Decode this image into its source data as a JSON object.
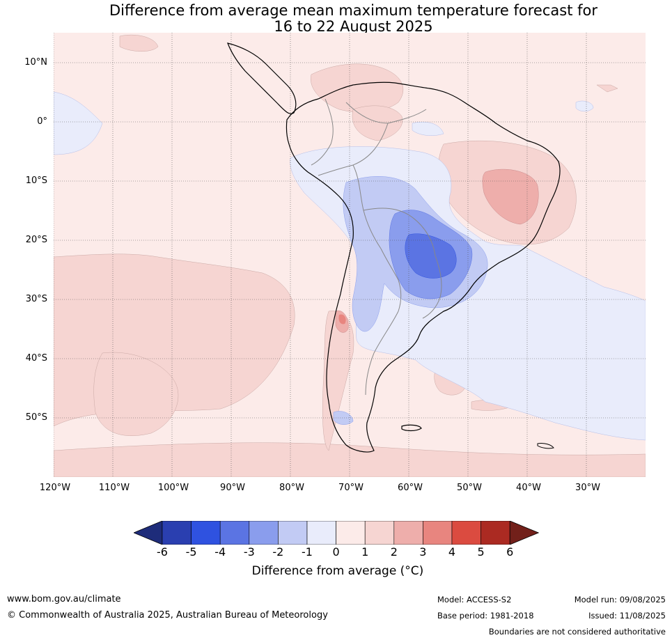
{
  "title": {
    "line1": "Difference from average mean maximum temperature forecast for",
    "line2": "16 to 22 August 2025"
  },
  "axes": {
    "lat_labels": [
      "10°N",
      "0°",
      "10°S",
      "20°S",
      "30°S",
      "40°S",
      "50°S"
    ],
    "lon_labels": [
      "120°W",
      "110°W",
      "100°W",
      "90°W",
      "80°W",
      "70°W",
      "60°W",
      "50°W",
      "40°W",
      "30°W"
    ]
  },
  "colorbar": {
    "ticks": [
      "-6",
      "-5",
      "-4",
      "-3",
      "-2",
      "-1",
      "0",
      "1",
      "2",
      "3",
      "4",
      "5",
      "6"
    ],
    "colors": [
      "#1e2c7a",
      "#2a3fb0",
      "#2f52e0",
      "#5b74e3",
      "#8a9ded",
      "#c2cbf4",
      "#e9ecfb",
      "#fcebe9",
      "#f6d5d2",
      "#eeaeab",
      "#e8857f",
      "#db4b40",
      "#ab2a22",
      "#72201a"
    ],
    "label": "Difference from average (°C)"
  },
  "footer": {
    "website": "www.bom.gov.au/climate",
    "copyright": "© Commonwealth of Australia 2025, Australian Bureau of Meteorology",
    "model": "Model: ACCESS-S2",
    "base_period": "Base period: 1981-2018",
    "model_run": "Model run: 09/08/2025",
    "issued": "Issued: 11/08/2025",
    "disclaimer": "Boundaries are not considered authoritative"
  }
}
